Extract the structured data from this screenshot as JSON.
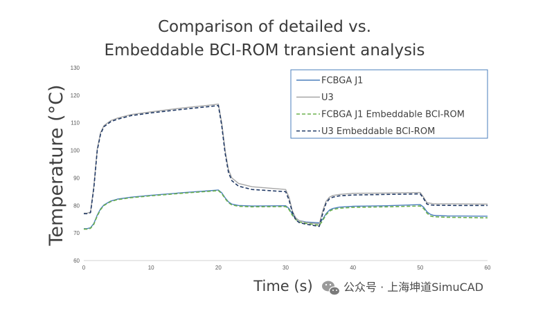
{
  "chart_data": {
    "type": "line",
    "title": [
      "Comparison of detailed vs.",
      "Embeddable BCI-ROM transient analysis"
    ],
    "xlabel": "Time (s)",
    "ylabel": "Temperature (°C)",
    "xlim": [
      0,
      60
    ],
    "ylim": [
      60,
      130
    ],
    "xticks": [
      0,
      10,
      20,
      30,
      40,
      50,
      60
    ],
    "yticks": [
      60,
      70,
      80,
      90,
      100,
      110,
      120,
      130
    ],
    "grid": false,
    "legend_position": "top-right",
    "series": [
      {
        "name": "FCBGA J1",
        "color": "#4a7ebb",
        "dash": "solid",
        "points": [
          [
            0,
            71.6
          ],
          [
            0.5,
            71.6
          ],
          [
            1,
            71.9
          ],
          [
            1.5,
            73.5
          ],
          [
            2,
            76.5
          ],
          [
            2.5,
            78.8
          ],
          [
            3,
            80.2
          ],
          [
            4,
            81.6
          ],
          [
            5,
            82.3
          ],
          [
            7,
            83.0
          ],
          [
            10,
            83.7
          ],
          [
            15,
            84.7
          ],
          [
            19,
            85.4
          ],
          [
            20,
            85.6
          ],
          [
            20.5,
            84.6
          ],
          [
            21,
            82.8
          ],
          [
            21.5,
            81.3
          ],
          [
            22,
            80.5
          ],
          [
            23,
            80.0
          ],
          [
            25,
            79.8
          ],
          [
            30,
            79.9
          ],
          [
            30.5,
            78.9
          ],
          [
            31,
            76.8
          ],
          [
            31.5,
            75.3
          ],
          [
            32,
            74.5
          ],
          [
            33,
            74.0
          ],
          [
            35,
            73.7
          ],
          [
            35.5,
            75.0
          ],
          [
            36,
            77.0
          ],
          [
            36.5,
            78.3
          ],
          [
            37,
            78.9
          ],
          [
            38,
            79.4
          ],
          [
            40,
            79.7
          ],
          [
            45,
            79.9
          ],
          [
            50,
            80.3
          ],
          [
            50.5,
            79.4
          ],
          [
            51,
            77.7
          ],
          [
            51.5,
            76.8
          ],
          [
            52,
            76.4
          ],
          [
            54,
            76.2
          ],
          [
            60,
            76.1
          ]
        ]
      },
      {
        "name": "U3",
        "color": "#a6a6a6",
        "dash": "solid",
        "points": [
          [
            0,
            77.2
          ],
          [
            0.5,
            77.2
          ],
          [
            1,
            77.6
          ],
          [
            1.5,
            87.0
          ],
          [
            2,
            100.5
          ],
          [
            2.5,
            106.5
          ],
          [
            3,
            109.0
          ],
          [
            4,
            110.8
          ],
          [
            5,
            111.7
          ],
          [
            7,
            113.0
          ],
          [
            10,
            114.0
          ],
          [
            15,
            115.5
          ],
          [
            19,
            116.5
          ],
          [
            20,
            116.8
          ],
          [
            20.5,
            110.0
          ],
          [
            21,
            100.0
          ],
          [
            21.5,
            93.0
          ],
          [
            22,
            90.0
          ],
          [
            23,
            88.0
          ],
          [
            25,
            86.8
          ],
          [
            30,
            85.8
          ],
          [
            30.5,
            83.0
          ],
          [
            31,
            78.0
          ],
          [
            31.5,
            75.5
          ],
          [
            32,
            74.5
          ],
          [
            33,
            73.8
          ],
          [
            35,
            73.3
          ],
          [
            35.5,
            78.0
          ],
          [
            36,
            81.5
          ],
          [
            36.5,
            83.0
          ],
          [
            37,
            83.6
          ],
          [
            38,
            84.0
          ],
          [
            40,
            84.4
          ],
          [
            45,
            84.5
          ],
          [
            50,
            84.7
          ],
          [
            50.5,
            83.0
          ],
          [
            51,
            81.0
          ],
          [
            51.5,
            80.8
          ],
          [
            52,
            80.6
          ],
          [
            55,
            80.6
          ],
          [
            60,
            80.5
          ]
        ]
      },
      {
        "name": "FCBGA J1 Embeddable BCI-ROM",
        "color": "#6ab04c",
        "dash": "dashed",
        "points": [
          [
            0,
            71.4
          ],
          [
            0.5,
            71.4
          ],
          [
            1,
            71.7
          ],
          [
            1.5,
            73.2
          ],
          [
            2,
            76.2
          ],
          [
            2.5,
            78.5
          ],
          [
            3,
            80.0
          ],
          [
            4,
            81.4
          ],
          [
            5,
            82.1
          ],
          [
            7,
            82.8
          ],
          [
            10,
            83.5
          ],
          [
            15,
            84.5
          ],
          [
            19,
            85.2
          ],
          [
            20,
            85.4
          ],
          [
            20.5,
            84.3
          ],
          [
            21,
            82.5
          ],
          [
            21.5,
            81.0
          ],
          [
            22,
            80.2
          ],
          [
            23,
            79.7
          ],
          [
            25,
            79.5
          ],
          [
            30,
            79.6
          ],
          [
            30.5,
            78.5
          ],
          [
            31,
            76.4
          ],
          [
            31.5,
            74.9
          ],
          [
            32,
            74.0
          ],
          [
            33,
            73.5
          ],
          [
            35,
            72.8
          ],
          [
            35.5,
            74.5
          ],
          [
            36,
            76.6
          ],
          [
            36.5,
            77.9
          ],
          [
            37,
            78.5
          ],
          [
            38,
            79.0
          ],
          [
            40,
            79.3
          ],
          [
            45,
            79.5
          ],
          [
            50,
            79.8
          ],
          [
            50.5,
            78.9
          ],
          [
            51,
            77.2
          ],
          [
            51.5,
            76.2
          ],
          [
            52,
            75.9
          ],
          [
            54,
            75.7
          ],
          [
            60,
            75.5
          ]
        ]
      },
      {
        "name": "U3 Embeddable BCI-ROM",
        "color": "#1f3864",
        "dash": "dashed",
        "points": [
          [
            0,
            77.0
          ],
          [
            0.5,
            77.0
          ],
          [
            1,
            77.4
          ],
          [
            1.5,
            86.5
          ],
          [
            2,
            100.0
          ],
          [
            2.5,
            106.0
          ],
          [
            3,
            108.6
          ],
          [
            4,
            110.4
          ],
          [
            5,
            111.3
          ],
          [
            7,
            112.6
          ],
          [
            10,
            113.6
          ],
          [
            15,
            115.0
          ],
          [
            19,
            116.0
          ],
          [
            20,
            116.3
          ],
          [
            20.5,
            109.0
          ],
          [
            21,
            99.0
          ],
          [
            21.5,
            92.0
          ],
          [
            22,
            89.0
          ],
          [
            23,
            87.0
          ],
          [
            25,
            85.8
          ],
          [
            30,
            85.0
          ],
          [
            30.5,
            82.0
          ],
          [
            31,
            77.5
          ],
          [
            31.5,
            74.8
          ],
          [
            32,
            73.8
          ],
          [
            33,
            73.2
          ],
          [
            35,
            72.4
          ],
          [
            35.5,
            77.0
          ],
          [
            36,
            80.8
          ],
          [
            36.5,
            82.4
          ],
          [
            37,
            83.0
          ],
          [
            38,
            83.5
          ],
          [
            40,
            83.8
          ],
          [
            45,
            84.0
          ],
          [
            50,
            84.2
          ],
          [
            50.5,
            82.5
          ],
          [
            51,
            80.5
          ],
          [
            51.5,
            80.2
          ],
          [
            52,
            80.1
          ],
          [
            55,
            80.0
          ],
          [
            60,
            80.0
          ]
        ]
      }
    ]
  },
  "watermark": {
    "text": "公众号 · 上海坤道SimuCAD",
    "icon": "wechat-icon"
  }
}
